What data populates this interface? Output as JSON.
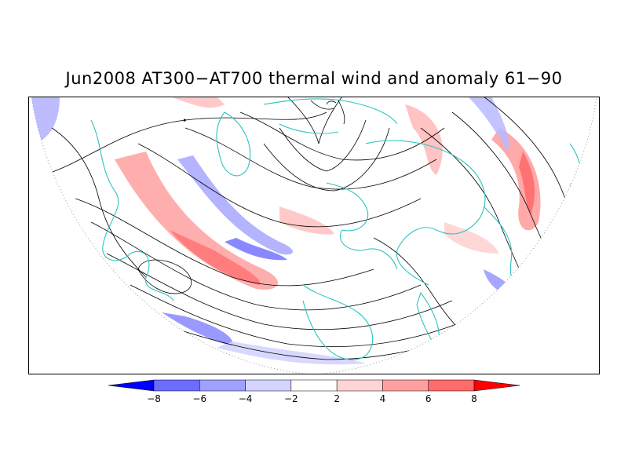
{
  "title": "Jun2008 AT300−AT700 thermal wind and anomaly 61−90",
  "map": {
    "projection": "polar-stereographic-northern-hemisphere",
    "fields": [
      "thermal-wind-streamlines",
      "anomaly-shading",
      "coastlines"
    ],
    "coastline_color": "#2cc3c3",
    "streamline_color": "#000000"
  },
  "colorbar": {
    "tick_labels": [
      "−8",
      "−6",
      "−4",
      "−2",
      "2",
      "4",
      "6",
      "8"
    ],
    "colors": [
      "#0000ff",
      "#6c6cff",
      "#a0a0ff",
      "#d4d4ff",
      "#ffffff",
      "#ffd4d4",
      "#ffa0a0",
      "#ff6c6c",
      "#ff0000"
    ]
  }
}
